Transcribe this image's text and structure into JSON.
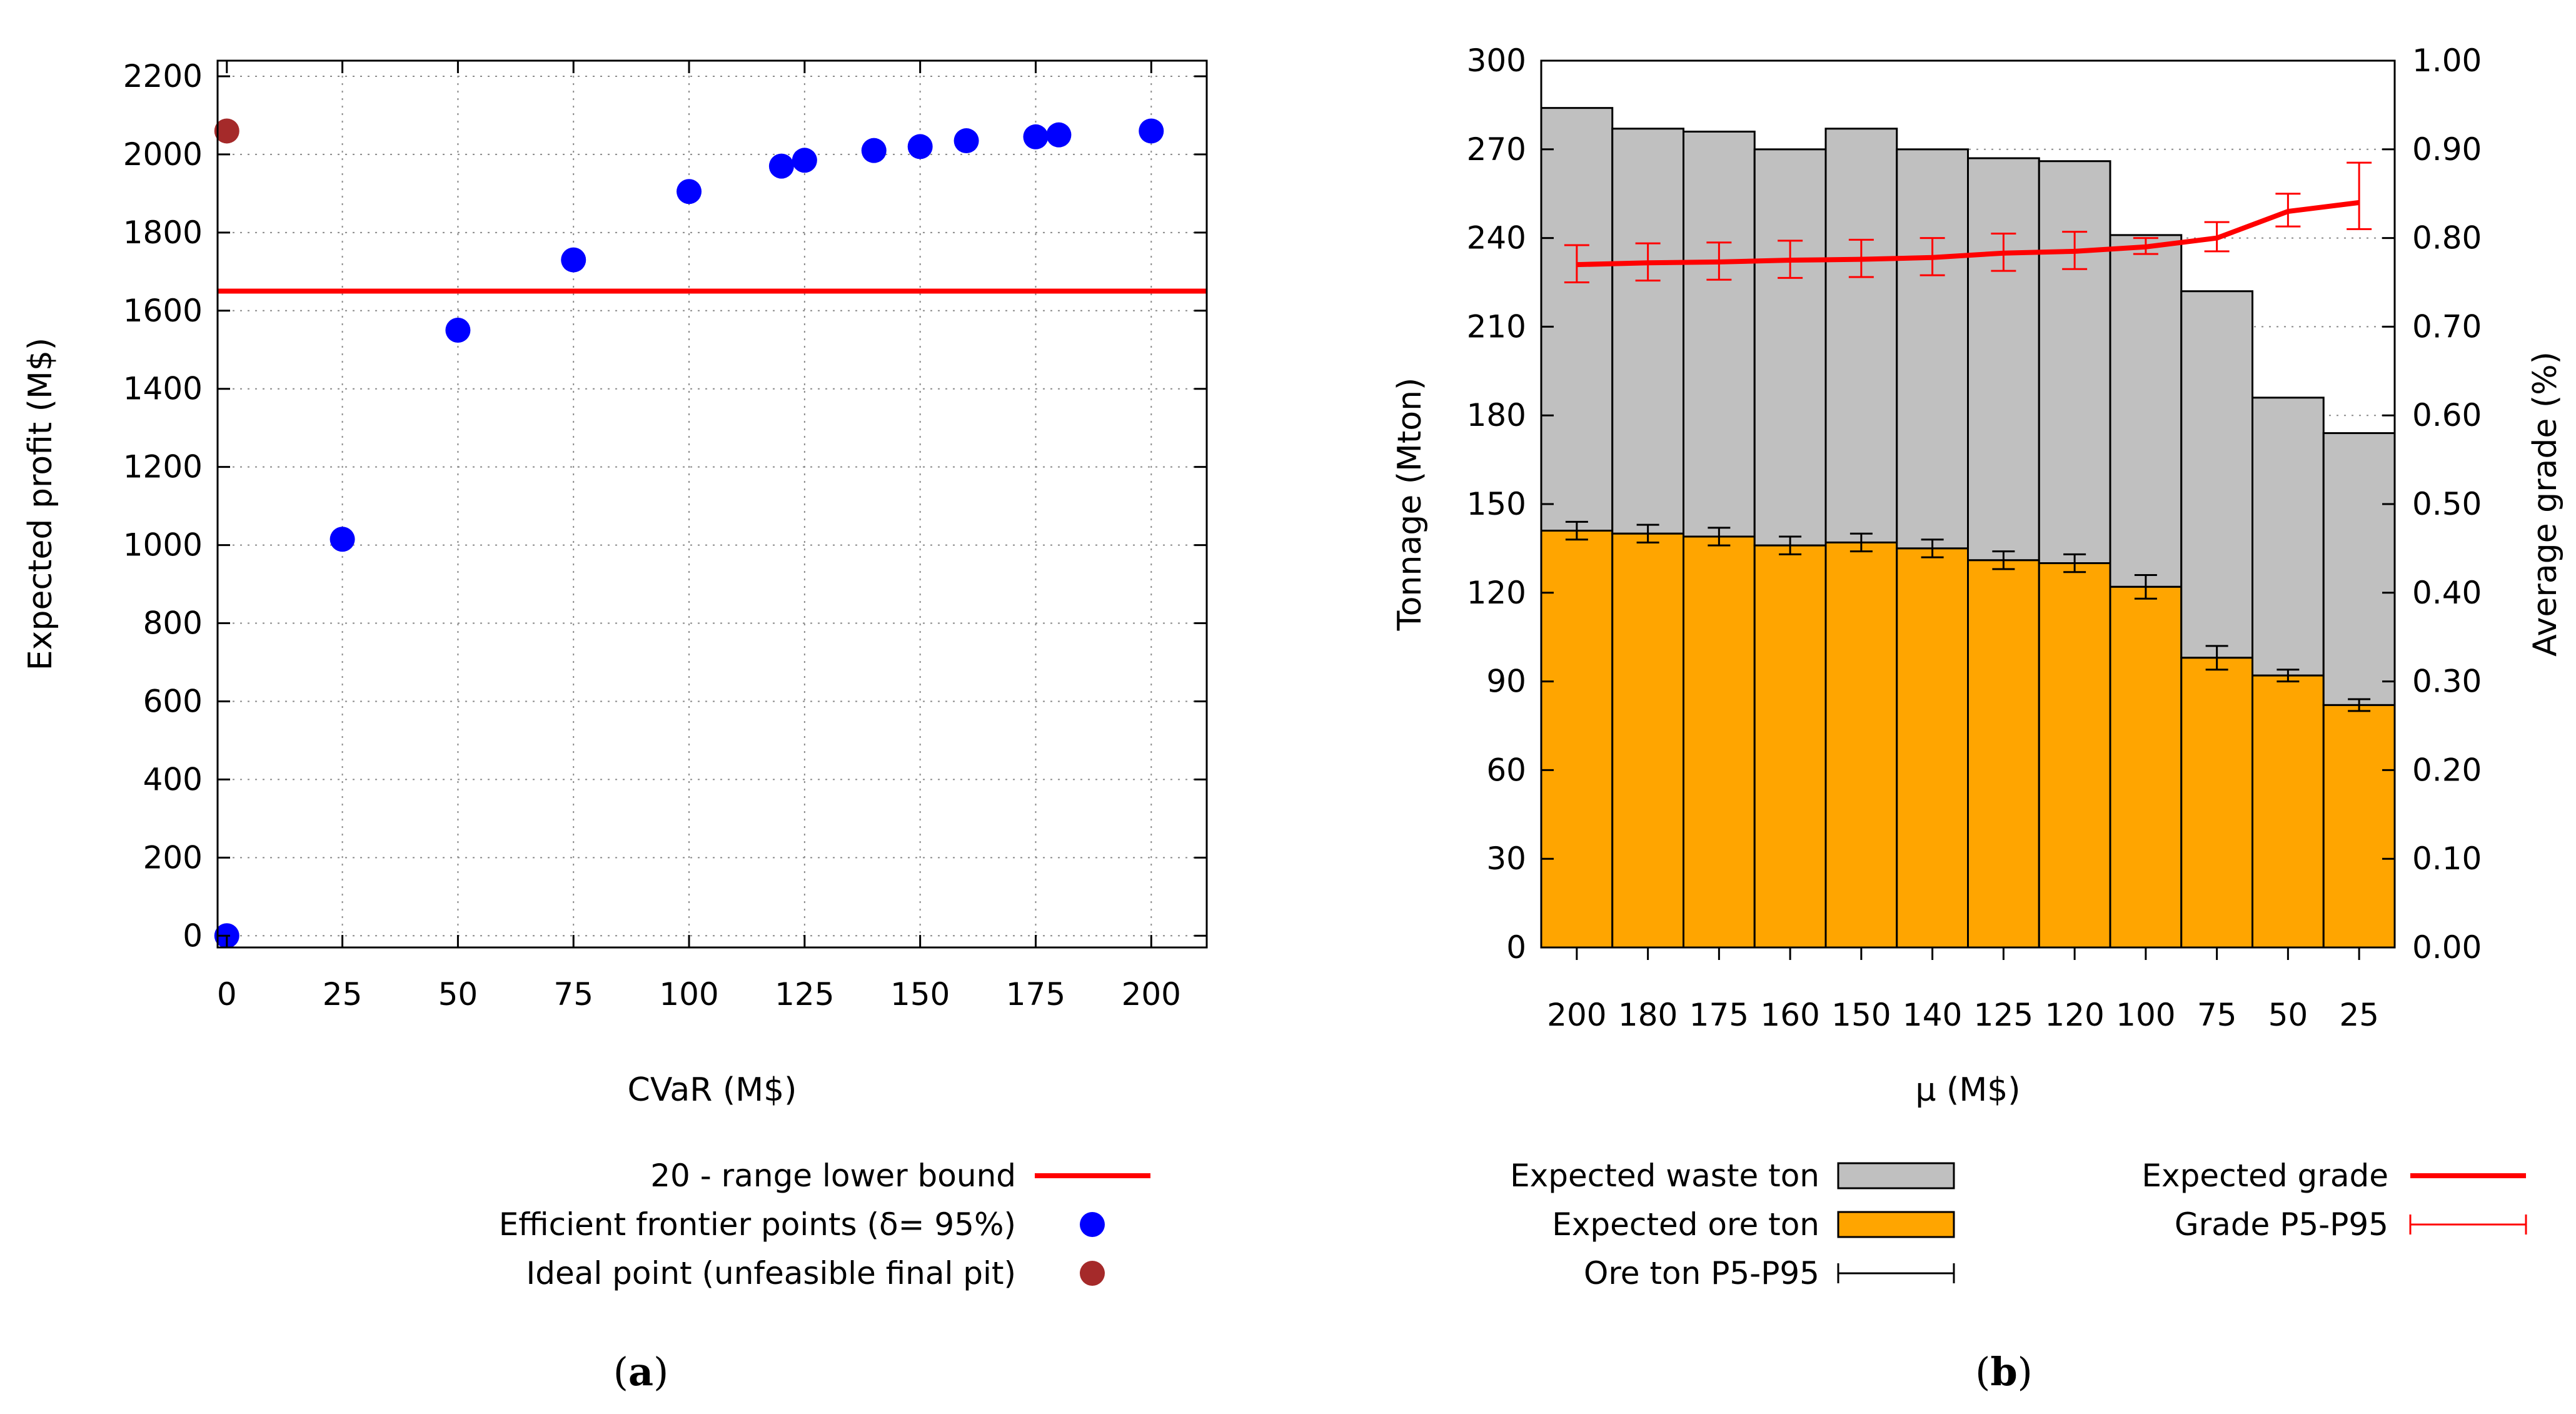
{
  "chart_data": [
    {
      "type": "scatter",
      "xlabel": "CVaR (M$)",
      "ylabel": "Expected profit (M$)",
      "xlim": [
        -2,
        212
      ],
      "ylim": [
        -30,
        2240
      ],
      "xticks": [
        0,
        25,
        50,
        75,
        100,
        125,
        150,
        175,
        200
      ],
      "yticks": [
        0,
        200,
        400,
        600,
        800,
        1000,
        1200,
        1400,
        1600,
        1800,
        2000,
        2200
      ],
      "grid": true,
      "legend_position": "below",
      "reference_line": {
        "name": "20 - range lower bound",
        "y": 1650,
        "color": "#ff0000"
      },
      "series": [
        {
          "name": "Efficient frontier points (δ= 95%)",
          "color": "#0000ff",
          "points": [
            [
              0,
              0
            ],
            [
              25,
              1015
            ],
            [
              50,
              1550
            ],
            [
              75,
              1730
            ],
            [
              100,
              1905
            ],
            [
              120,
              1970
            ],
            [
              125,
              1985
            ],
            [
              140,
              2010
            ],
            [
              150,
              2020
            ],
            [
              160,
              2035
            ],
            [
              175,
              2045
            ],
            [
              180,
              2050
            ],
            [
              200,
              2060
            ]
          ]
        },
        {
          "name": "Ideal point (unfeasible final pit)",
          "color": "#a52a2a",
          "points": [
            [
              0,
              2060
            ]
          ]
        }
      ],
      "caption": "a"
    },
    {
      "type": "bar",
      "stacked": true,
      "xlabel": "μ (M$)",
      "ylabel": "Tonnage (Mton)",
      "y2label": "Average grade (%)",
      "categories": [
        "200",
        "180",
        "175",
        "160",
        "150",
        "140",
        "125",
        "120",
        "100",
        "75",
        "50",
        "25"
      ],
      "ylim": [
        0,
        300
      ],
      "yticks": [
        0,
        30,
        60,
        90,
        120,
        150,
        180,
        210,
        240,
        270,
        300
      ],
      "y2lim": [
        0,
        1.0
      ],
      "y2ticks": [
        "0.00",
        "0.10",
        "0.20",
        "0.30",
        "0.40",
        "0.50",
        "0.60",
        "0.70",
        "0.80",
        "0.90",
        "1.00"
      ],
      "grid": true,
      "legend_position": "below",
      "series": [
        {
          "name": "Expected ore ton",
          "color": "#ffa500",
          "values": [
            141,
            140,
            139,
            136,
            137,
            135,
            131,
            130,
            122,
            98,
            92,
            82
          ],
          "err_low": [
            138,
            137,
            136,
            133,
            134,
            132,
            128,
            127,
            118,
            94,
            90,
            80
          ],
          "err_high": [
            144,
            143,
            142,
            139,
            140,
            138,
            134,
            133,
            126,
            102,
            94,
            84
          ]
        },
        {
          "name": "Expected waste ton",
          "color": "#c0c0c0",
          "values": [
            143,
            137,
            137,
            134,
            140,
            135,
            136,
            136,
            119,
            124,
            94,
            92
          ]
        }
      ],
      "line_series": {
        "name": "Expected grade",
        "color": "#ff0000",
        "axis": "y2",
        "values": [
          0.77,
          0.772,
          0.773,
          0.775,
          0.776,
          0.778,
          0.783,
          0.785,
          0.79,
          0.8,
          0.83,
          0.84
        ],
        "err_low": [
          0.75,
          0.752,
          0.753,
          0.755,
          0.756,
          0.758,
          0.763,
          0.765,
          0.782,
          0.785,
          0.813,
          0.81
        ],
        "err_high": [
          0.792,
          0.794,
          0.795,
          0.797,
          0.798,
          0.8,
          0.805,
          0.807,
          0.8,
          0.818,
          0.85,
          0.885
        ]
      },
      "legend_entries": {
        "ore_err": "Ore ton P5-P95",
        "grade_err": "Grade P5-P95"
      },
      "caption": "b"
    }
  ]
}
